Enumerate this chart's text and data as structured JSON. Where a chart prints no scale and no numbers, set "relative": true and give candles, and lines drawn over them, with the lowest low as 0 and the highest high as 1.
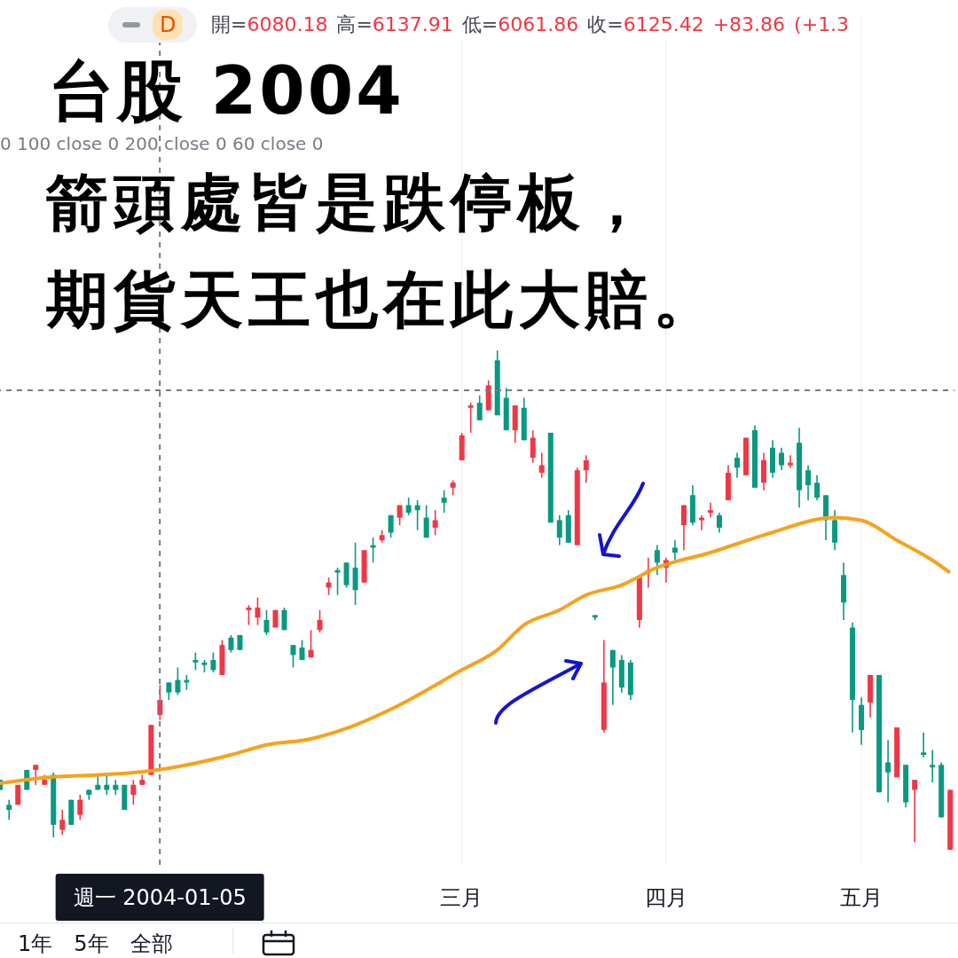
{
  "chart_data": {
    "type": "candlestick",
    "title": "台股 2004",
    "subtitle": "箭頭處皆是跌停板，",
    "relative": true,
    "annotations": [
      "開=6080.18 高=6137.91 低=6061.86 收=6125.42 +83.86 (+1.3",
      "0 100 close 0 200 close 0 60 close 0",
      "D",
      "1年",
      "5年",
      "全部",
      "期貨天王也在此大賠。"
    ],
    "categories": [
      null,
      null,
      null,
      null,
      null,
      null,
      null,
      null,
      null,
      null,
      null,
      null,
      null,
      null,
      null,
      null,
      null,
      null,
      "週一 2004-01-05",
      null,
      null,
      null,
      null,
      null,
      null,
      null,
      null,
      null,
      null,
      null,
      null,
      null,
      null,
      null,
      null,
      null,
      null,
      null,
      null,
      null,
      null,
      null,
      null,
      null,
      null,
      null,
      null,
      null,
      null,
      null,
      null,
      null,
      "三月",
      null,
      null,
      null,
      null,
      null,
      null,
      null,
      null,
      null,
      null,
      null,
      null,
      null,
      null,
      null,
      null,
      null,
      null,
      null,
      null,
      null,
      null,
      "四月",
      null,
      null,
      null,
      null,
      null,
      null,
      null,
      null,
      null,
      null,
      null,
      null,
      null,
      null,
      null,
      null,
      null,
      null,
      null,
      null,
      null,
      "五月",
      null,
      null,
      null,
      null,
      null,
      null,
      null,
      null,
      null,
      null
    ],
    "colors": [
      "#089981",
      "#089981",
      "#f23645",
      "#089981",
      "#f23645",
      "#f23645",
      "#089981",
      "#f23645",
      "#089981",
      "#f23645",
      "#089981",
      "#089981",
      "#089981",
      "#089981",
      "#089981",
      "#f23645",
      "#f23645",
      "#f23645",
      "#f23645",
      "#089981",
      "#089981",
      "#089981",
      "#089981",
      "#089981",
      "#089981",
      "#f23645",
      "#089981",
      "#089981",
      "#f23645",
      "#f23645",
      "#089981",
      "#f23645",
      "#089981",
      "#089981",
      "#089981",
      "#f23645",
      "#f23645",
      "#f23645",
      "#089981",
      "#089981",
      "#089981",
      "#f23645",
      "#089981",
      "#f23645",
      "#089981",
      "#f23645",
      "#089981",
      "#089981",
      "#089981",
      "#f23645",
      "#089981",
      "#f23645",
      "#f23645",
      "#f23645",
      "#089981",
      "#f23645",
      "#089981",
      "#089981",
      "#f23645",
      "#089981",
      "#f23645",
      "#f23645",
      "#089981",
      "#089981",
      "#089981",
      "#f23645",
      "#f23645",
      "#089981",
      "#f23645",
      "#089981",
      "#089981",
      "#089981",
      "#f23645",
      "#f23645",
      "#089981",
      "#f23645",
      "#089981",
      "#f23645",
      "#089981",
      "#f23645",
      "#f23645",
      "#089981",
      "#f23645",
      "#089981",
      "#f23645",
      "#089981",
      "#f23645",
      "#089981",
      "#089981",
      "#f23645",
      "#089981",
      "#089981",
      "#089981",
      "#089981",
      "#089981",
      "#089981",
      "#089981",
      "#089981",
      "#f23645",
      "#089981",
      "#089981",
      "#f23645",
      "#089981",
      "#f23645",
      "#089981",
      "#089981",
      "#089981",
      "#f23645"
    ],
    "ohlc": [
      [
        0.14,
        0.14,
        0.12,
        0.12
      ],
      [
        0.09,
        0.1,
        0.06,
        0.08
      ],
      [
        0.09,
        0.13,
        0.09,
        0.13
      ],
      [
        0.16,
        0.16,
        0.12,
        0.12
      ],
      [
        0.16,
        0.17,
        0.13,
        0.17
      ],
      [
        0.13,
        0.15,
        0.13,
        0.14
      ],
      [
        0.15,
        0.155,
        0.025,
        0.05
      ],
      [
        0.04,
        0.08,
        0.03,
        0.06
      ],
      [
        0.1,
        0.1,
        0.05,
        0.05
      ],
      [
        0.07,
        0.11,
        0.06,
        0.1
      ],
      [
        0.12,
        0.12,
        0.1,
        0.11
      ],
      [
        0.13,
        0.15,
        0.12,
        0.12
      ],
      [
        0.13,
        0.15,
        0.11,
        0.12
      ],
      [
        0.13,
        0.14,
        0.11,
        0.12
      ],
      [
        0.13,
        0.13,
        0.08,
        0.08
      ],
      [
        0.11,
        0.14,
        0.09,
        0.13
      ],
      [
        0.13,
        0.15,
        0.13,
        0.14
      ],
      [
        0.15,
        0.25,
        0.15,
        0.25
      ],
      [
        0.27,
        0.33,
        0.26,
        0.3
      ],
      [
        0.335,
        0.335,
        0.3,
        0.315
      ],
      [
        0.34,
        0.365,
        0.31,
        0.315
      ],
      [
        0.34,
        0.35,
        0.32,
        0.335
      ],
      [
        0.38,
        0.395,
        0.36,
        0.375
      ],
      [
        0.375,
        0.38,
        0.355,
        0.37
      ],
      [
        0.38,
        0.395,
        0.355,
        0.36
      ],
      [
        0.35,
        0.42,
        0.35,
        0.41
      ],
      [
        0.425,
        0.43,
        0.395,
        0.4
      ],
      [
        0.43,
        0.43,
        0.4,
        0.4
      ],
      [
        0.48,
        0.49,
        0.45,
        0.485
      ],
      [
        0.465,
        0.505,
        0.45,
        0.485
      ],
      [
        0.46,
        0.48,
        0.43,
        0.435
      ],
      [
        0.445,
        0.48,
        0.445,
        0.48
      ],
      [
        0.48,
        0.485,
        0.44,
        0.44
      ],
      [
        0.41,
        0.41,
        0.365,
        0.39
      ],
      [
        0.405,
        0.42,
        0.38,
        0.38
      ],
      [
        0.385,
        0.44,
        0.385,
        0.4
      ],
      [
        0.44,
        0.48,
        0.435,
        0.46
      ],
      [
        0.525,
        0.545,
        0.51,
        0.535
      ],
      [
        0.56,
        0.565,
        0.51,
        0.555
      ],
      [
        0.575,
        0.575,
        0.525,
        0.53
      ],
      [
        0.565,
        0.615,
        0.49,
        0.52
      ],
      [
        0.535,
        0.6,
        0.535,
        0.6
      ],
      [
        0.61,
        0.625,
        0.575,
        0.605
      ],
      [
        0.62,
        0.64,
        0.615,
        0.63
      ],
      [
        0.67,
        0.67,
        0.625,
        0.635
      ],
      [
        0.665,
        0.69,
        0.65,
        0.69
      ],
      [
        0.69,
        0.705,
        0.67,
        0.675
      ],
      [
        0.69,
        0.7,
        0.64,
        0.68
      ],
      [
        0.665,
        0.69,
        0.625,
        0.625
      ],
      [
        0.645,
        0.68,
        0.63,
        0.66
      ],
      [
        0.705,
        0.72,
        0.675,
        0.695
      ],
      [
        0.725,
        0.74,
        0.71,
        0.735
      ],
      [
        0.78,
        0.835,
        0.78,
        0.83
      ],
      [
        0.885,
        0.895,
        0.835,
        0.89
      ],
      [
        0.895,
        0.91,
        0.86,
        0.86
      ],
      [
        0.88,
        0.94,
        0.88,
        0.93
      ],
      [
        0.98,
        1,
        0.87,
        0.87
      ],
      [
        0.905,
        0.925,
        0.84,
        0.84
      ],
      [
        0.84,
        0.89,
        0.815,
        0.89
      ],
      [
        0.885,
        0.905,
        0.82,
        0.82
      ],
      [
        0.785,
        0.84,
        0.775,
        0.825
      ],
      [
        0.755,
        0.795,
        0.745,
        0.77
      ],
      [
        0.835,
        0.835,
        0.655,
        0.655
      ],
      [
        0.66,
        0.67,
        0.61,
        0.625
      ],
      [
        0.67,
        0.68,
        0.615,
        0.615
      ],
      [
        0.61,
        0.765,
        0.61,
        0.76
      ],
      [
        0.76,
        0.79,
        0.735,
        0.78
      ],
      [
        0.47,
        0.47,
        0.46,
        0.465
      ],
      [
        0.24,
        0.42,
        0.235,
        0.335
      ],
      [
        0.4,
        0.4,
        0.29,
        0.365
      ],
      [
        0.38,
        0.39,
        0.315,
        0.325
      ],
      [
        0.375,
        0.38,
        0.3,
        0.31
      ],
      [
        0.46,
        0.545,
        0.445,
        0.545
      ],
      [
        0.555,
        0.585,
        0.525,
        0.56
      ],
      [
        0.6,
        0.61,
        0.55,
        0.575
      ],
      [
        0.565,
        0.585,
        0.535,
        0.58
      ],
      [
        0.605,
        0.62,
        0.58,
        0.595
      ],
      [
        0.65,
        0.69,
        0.6,
        0.69
      ],
      [
        0.71,
        0.73,
        0.65,
        0.655
      ],
      [
        0.66,
        0.67,
        0.64,
        0.665
      ],
      [
        0.675,
        0.695,
        0.665,
        0.68
      ],
      [
        0.67,
        0.675,
        0.635,
        0.645
      ],
      [
        0.7,
        0.77,
        0.7,
        0.755
      ],
      [
        0.785,
        0.795,
        0.745,
        0.765
      ],
      [
        0.75,
        0.825,
        0.75,
        0.825
      ],
      [
        0.84,
        0.85,
        0.725,
        0.725
      ],
      [
        0.735,
        0.795,
        0.72,
        0.78
      ],
      [
        0.805,
        0.82,
        0.745,
        0.755
      ],
      [
        0.795,
        0.805,
        0.76,
        0.77
      ],
      [
        0.77,
        0.79,
        0.765,
        0.775
      ],
      [
        0.815,
        0.845,
        0.685,
        0.72
      ],
      [
        0.76,
        0.77,
        0.7,
        0.73
      ],
      [
        0.735,
        0.75,
        0.7,
        0.705
      ],
      [
        0.71,
        0.71,
        0.62,
        0.66
      ],
      [
        0.66,
        0.68,
        0.6,
        0.615
      ],
      [
        0.55,
        0.575,
        0.46,
        0.495
      ],
      [
        0.445,
        0.455,
        0.235,
        0.3
      ],
      [
        0.29,
        0.305,
        0.21,
        0.24
      ],
      [
        0.295,
        0.35,
        0.265,
        0.35
      ],
      [
        0.35,
        0.35,
        0.115,
        0.115
      ],
      [
        0.175,
        0.22,
        0.095,
        0.155
      ],
      [
        0.145,
        0.245,
        0.145,
        0.245
      ],
      [
        0.17,
        0.17,
        0.085,
        0.095
      ],
      [
        0.12,
        0.14,
        0.015,
        0.14
      ],
      [
        0.195,
        0.235,
        0.185,
        0.19
      ],
      [
        0.17,
        0.2,
        0.135,
        0.165
      ],
      [
        0.17,
        0.175,
        0.065,
        0.065
      ],
      [
        0,
        0.12,
        0,
        0.12
      ]
    ],
    "series": [
      {
        "type": "line",
        "color": "#f7a21b",
        "values": [
          0.133,
          null,
          null,
          null,
          null,
          null,
          0.146,
          null,
          null,
          null,
          0.149,
          null,
          null,
          null,
          null,
          null,
          null,
          0.158,
          null,
          null,
          null,
          null,
          null,
          null,
          null,
          null,
          0.19,
          null,
          null,
          null,
          0.21,
          null,
          null,
          null,
          null,
          0.222,
          null,
          null,
          null,
          0.243,
          null,
          null,
          null,
          null,
          null,
          0.29,
          null,
          null,
          null,
          null,
          null,
          null,
          0.36,
          null,
          null,
          null,
          0.4,
          null,
          null,
          0.45,
          null,
          null,
          null,
          0.48,
          null,
          null,
          0.51,
          null,
          null,
          null,
          0.53,
          null,
          null,
          null,
          0.565,
          null,
          null,
          null,
          null,
          null,
          0.595,
          null,
          null,
          null,
          null,
          null,
          0.63,
          null,
          null,
          null,
          null,
          null,
          null,
          null,
          0.665,
          null,
          null,
          0.66,
          null,
          null,
          null,
          0.62,
          null,
          null,
          null,
          0.58,
          null,
          0.555
        ]
      }
    ],
    "ref_lines": [
      {
        "axis": "x",
        "value": "週一 2004-01-05",
        "color": "#787b86",
        "line_style": "dashed"
      },
      {
        "axis": "y",
        "value": 0.92,
        "color": "#787b86",
        "line_style": "dashed"
      }
    ],
    "grid": "x"
  }
}
